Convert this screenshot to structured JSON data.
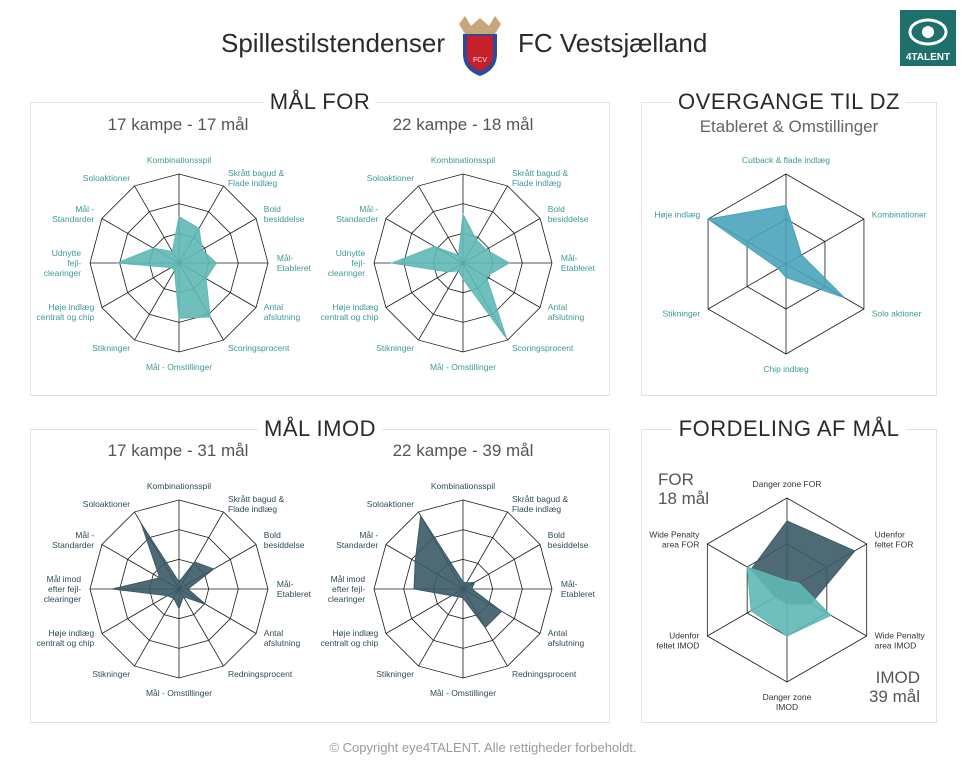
{
  "header": {
    "title_left": "Spillestilstendenser",
    "title_right": "FC Vestsjælland"
  },
  "footer": "© Copyright eye4TALENT. Alle rettigheder forbeholdt.",
  "logo_text": "4TALENT",
  "crest_text": "FCV",
  "colors": {
    "teal": "#5fb8b5",
    "teal_label": "#3a9a97",
    "dark": "#3a5a66",
    "dark_label": "#2f4c57",
    "blue": "#4aa3bb",
    "grid": "#1a1a1a"
  },
  "panels": {
    "maal_for": {
      "title": "MÅL FOR"
    },
    "overgange": {
      "title": "OVERGANGE TIL DZ",
      "subtitle": "Etableret & Omstillinger"
    },
    "maal_imod": {
      "title": "MÅL IMOD"
    },
    "fordeling": {
      "title": "FORDELING AF MÅL",
      "for_label": "FOR",
      "for_count": "18 mål",
      "imod_label": "IMOD",
      "imod_count": "39 mål"
    }
  },
  "chart_data": [
    {
      "type": "radar",
      "title": "17 kampe - 17 mål",
      "color": "teal",
      "axes": [
        "Kombinationsspil",
        "Skrått bagud & Flade indlæg",
        "Bold besiddelse",
        "Mål- Etableret",
        "Antal afslutning",
        "Scoringsprocent",
        "Mål - Omstillinger",
        "Stikninger",
        "Høje indlæg centralt og chip",
        "Udnytte fejl- clearinger",
        "Mål - Standarder",
        "Soloaktioner"
      ],
      "values": [
        0.52,
        0.45,
        0.3,
        0.42,
        0.35,
        0.7,
        0.62,
        0.1,
        0.1,
        0.7,
        0.33,
        0.15
      ]
    },
    {
      "type": "radar",
      "title": "22 kampe - 18 mål",
      "color": "teal",
      "axes": [
        "Kombinationsspil",
        "Skrått bagud & Flade indlæg",
        "Bold besiddelse",
        "Mål- Etableret",
        "Antal afslutning",
        "Scoringsprocent",
        "Mål - Omstillinger",
        "Stikninger",
        "Høje indlæg centralt og chip",
        "Udnytte fejl- clearinger",
        "Mål - Standarder",
        "Soloaktioner"
      ],
      "values": [
        0.55,
        0.3,
        0.3,
        0.52,
        0.3,
        0.98,
        0.18,
        0.1,
        0.2,
        0.8,
        0.37,
        0.1
      ]
    },
    {
      "type": "radar",
      "title": "17 kampe - 31 mål",
      "color": "dark",
      "axes": [
        "Kombinationsspil",
        "Skrått bagud & Flade indlæg",
        "Bold besiddelse",
        "Mål- Etableret",
        "Antal afslutning",
        "Redningsprocent",
        "Mål - Omstillinger",
        "Stikninger",
        "Høje indlæg centralt og chip",
        "Mål imod efter fejl- clearinger",
        "Mål - Standarder",
        "Soloaktioner"
      ],
      "values": [
        0.08,
        0.35,
        0.45,
        0.1,
        0.35,
        0.1,
        0.22,
        0.12,
        0.15,
        0.75,
        0.25,
        0.85
      ]
    },
    {
      "type": "radar",
      "title": "22 kampe - 39 mål",
      "color": "dark",
      "axes": [
        "Kombinationsspil",
        "Skrått bagud & Flade indlæg",
        "Bold besiddelse",
        "Mål- Etableret",
        "Antal afslutning",
        "Redningsprocent",
        "Mål - Omstillinger",
        "Stikninger",
        "Høje indlæg centralt og chip",
        "Mål imod efter fejl- clearinger",
        "Mål - Standarder",
        "Soloaktioner"
      ],
      "values": [
        0.08,
        0.08,
        0.15,
        0.1,
        0.5,
        0.5,
        0.1,
        0.1,
        0.15,
        0.55,
        0.62,
        0.95
      ]
    },
    {
      "type": "radar",
      "title": "",
      "color": "blue",
      "axes": [
        "Cutback & flade indlæg",
        "Kombinationer",
        "Solo aktioner",
        "Chip indlæg",
        "Stikninger",
        "Høje indlæg"
      ],
      "values": [
        0.65,
        0.2,
        0.75,
        0.15,
        0.1,
        1.0
      ]
    },
    {
      "type": "radar",
      "title": "",
      "series_order": [
        "FOR",
        "IMOD"
      ],
      "axes": [
        "Danger zone FOR",
        "Udenfor feltet FOR",
        "Wide Penalty area IMOD",
        "Danger zone IMOD",
        "Udenfor feltet IMOD",
        "Wide Penalty area FOR"
      ],
      "series": [
        {
          "name": "FOR",
          "color": "dark",
          "values": [
            0.75,
            0.85,
            0.3,
            0.15,
            0.15,
            0.45
          ]
        },
        {
          "name": "IMOD",
          "color": "teal",
          "values": [
            0.1,
            0.15,
            0.55,
            0.5,
            0.45,
            0.5
          ]
        }
      ]
    }
  ]
}
